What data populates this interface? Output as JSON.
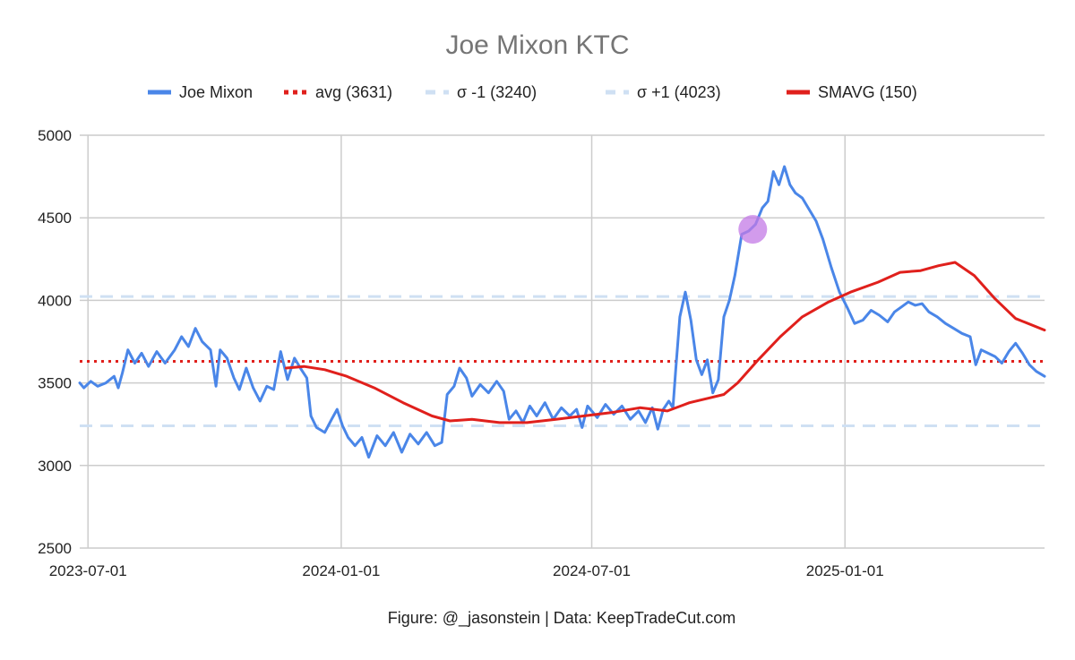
{
  "chart_data": {
    "type": "line",
    "title": "Joe Mixon KTC",
    "xlabel": "",
    "ylabel": "",
    "x_ticks": [
      "2023-07-01",
      "2024-01-01",
      "2024-07-01",
      "2025-01-01"
    ],
    "x_range": [
      "2023-06-25",
      "2025-05-26"
    ],
    "ylim": [
      2500,
      5000
    ],
    "y_ticks": [
      2500,
      3000,
      3500,
      4000,
      4500,
      5000
    ],
    "grid": true,
    "legend_position": "top",
    "footer": "Figure: @_jasonstein | Data: KeepTradeCut.com",
    "legend": [
      {
        "label": "Joe Mixon",
        "color": "#4a86e8",
        "style": "solid"
      },
      {
        "label": "avg (3631)",
        "color": "#e0201c",
        "style": "dotted"
      },
      {
        "label": "σ -1 (3240)",
        "color": "#cfe0f3",
        "style": "dashed"
      },
      {
        "label": "σ +1 (4023)",
        "color": "#cfe0f3",
        "style": "dashed"
      },
      {
        "label": "SMAVG (150)",
        "color": "#e0201c",
        "style": "solid"
      }
    ],
    "reference_lines": [
      {
        "name": "avg (3631)",
        "value": 3631
      },
      {
        "name": "σ -1 (3240)",
        "value": 3240
      },
      {
        "name": "σ +1 (4023)",
        "value": 4023
      }
    ],
    "highlight_point": {
      "x": "2024-10-26",
      "y": 4430,
      "color": "#c37ae6"
    },
    "series": [
      {
        "name": "Joe Mixon",
        "color": "#4a86e8",
        "points": [
          [
            "2023-06-25",
            3500
          ],
          [
            "2023-06-28",
            3470
          ],
          [
            "2023-07-03",
            3510
          ],
          [
            "2023-07-08",
            3480
          ],
          [
            "2023-07-14",
            3500
          ],
          [
            "2023-07-20",
            3540
          ],
          [
            "2023-07-23",
            3470
          ],
          [
            "2023-07-26",
            3560
          ],
          [
            "2023-07-30",
            3700
          ],
          [
            "2023-08-04",
            3620
          ],
          [
            "2023-08-09",
            3680
          ],
          [
            "2023-08-14",
            3600
          ],
          [
            "2023-08-20",
            3690
          ],
          [
            "2023-08-26",
            3620
          ],
          [
            "2023-09-02",
            3700
          ],
          [
            "2023-09-07",
            3780
          ],
          [
            "2023-09-12",
            3720
          ],
          [
            "2023-09-17",
            3830
          ],
          [
            "2023-09-22",
            3750
          ],
          [
            "2023-09-28",
            3700
          ],
          [
            "2023-10-02",
            3480
          ],
          [
            "2023-10-05",
            3700
          ],
          [
            "2023-10-10",
            3650
          ],
          [
            "2023-10-15",
            3530
          ],
          [
            "2023-10-19",
            3460
          ],
          [
            "2023-10-24",
            3590
          ],
          [
            "2023-10-29",
            3470
          ],
          [
            "2023-11-03",
            3390
          ],
          [
            "2023-11-08",
            3480
          ],
          [
            "2023-11-13",
            3460
          ],
          [
            "2023-11-18",
            3690
          ],
          [
            "2023-11-23",
            3520
          ],
          [
            "2023-11-28",
            3650
          ],
          [
            "2023-12-03",
            3580
          ],
          [
            "2023-12-07",
            3530
          ],
          [
            "2023-12-10",
            3300
          ],
          [
            "2023-12-14",
            3230
          ],
          [
            "2023-12-20",
            3200
          ],
          [
            "2023-12-25",
            3280
          ],
          [
            "2023-12-29",
            3340
          ],
          [
            "2024-01-02",
            3240
          ],
          [
            "2024-01-06",
            3170
          ],
          [
            "2024-01-11",
            3120
          ],
          [
            "2024-01-16",
            3170
          ],
          [
            "2024-01-21",
            3050
          ],
          [
            "2024-01-27",
            3180
          ],
          [
            "2024-02-02",
            3120
          ],
          [
            "2024-02-08",
            3200
          ],
          [
            "2024-02-14",
            3080
          ],
          [
            "2024-02-20",
            3190
          ],
          [
            "2024-02-26",
            3130
          ],
          [
            "2024-03-03",
            3200
          ],
          [
            "2024-03-09",
            3120
          ],
          [
            "2024-03-14",
            3140
          ],
          [
            "2024-03-18",
            3430
          ],
          [
            "2024-03-23",
            3480
          ],
          [
            "2024-03-27",
            3590
          ],
          [
            "2024-04-01",
            3530
          ],
          [
            "2024-04-05",
            3420
          ],
          [
            "2024-04-11",
            3490
          ],
          [
            "2024-04-17",
            3440
          ],
          [
            "2024-04-23",
            3510
          ],
          [
            "2024-04-28",
            3450
          ],
          [
            "2024-05-02",
            3280
          ],
          [
            "2024-05-07",
            3330
          ],
          [
            "2024-05-12",
            3260
          ],
          [
            "2024-05-17",
            3360
          ],
          [
            "2024-05-22",
            3300
          ],
          [
            "2024-05-28",
            3380
          ],
          [
            "2024-06-03",
            3280
          ],
          [
            "2024-06-09",
            3350
          ],
          [
            "2024-06-15",
            3300
          ],
          [
            "2024-06-20",
            3340
          ],
          [
            "2024-06-24",
            3230
          ],
          [
            "2024-06-28",
            3360
          ],
          [
            "2024-07-05",
            3290
          ],
          [
            "2024-07-11",
            3370
          ],
          [
            "2024-07-17",
            3310
          ],
          [
            "2024-07-23",
            3360
          ],
          [
            "2024-07-29",
            3280
          ],
          [
            "2024-08-04",
            3330
          ],
          [
            "2024-08-09",
            3260
          ],
          [
            "2024-08-14",
            3350
          ],
          [
            "2024-08-18",
            3220
          ],
          [
            "2024-08-22",
            3340
          ],
          [
            "2024-08-26",
            3390
          ],
          [
            "2024-08-29",
            3350
          ],
          [
            "2024-08-31",
            3580
          ],
          [
            "2024-09-03",
            3900
          ],
          [
            "2024-09-07",
            4050
          ],
          [
            "2024-09-11",
            3880
          ],
          [
            "2024-09-15",
            3640
          ],
          [
            "2024-09-19",
            3550
          ],
          [
            "2024-09-23",
            3640
          ],
          [
            "2024-09-27",
            3440
          ],
          [
            "2024-10-01",
            3520
          ],
          [
            "2024-10-05",
            3900
          ],
          [
            "2024-10-09",
            4000
          ],
          [
            "2024-10-13",
            4150
          ],
          [
            "2024-10-18",
            4400
          ],
          [
            "2024-10-23",
            4420
          ],
          [
            "2024-10-28",
            4460
          ],
          [
            "2024-11-02",
            4560
          ],
          [
            "2024-11-06",
            4600
          ],
          [
            "2024-11-10",
            4780
          ],
          [
            "2024-11-14",
            4700
          ],
          [
            "2024-11-18",
            4810
          ],
          [
            "2024-11-22",
            4700
          ],
          [
            "2024-11-26",
            4650
          ],
          [
            "2024-12-01",
            4620
          ],
          [
            "2024-12-06",
            4550
          ],
          [
            "2024-12-11",
            4480
          ],
          [
            "2024-12-16",
            4370
          ],
          [
            "2024-12-22",
            4200
          ],
          [
            "2024-12-28",
            4050
          ],
          [
            "2025-01-03",
            3950
          ],
          [
            "2025-01-08",
            3860
          ],
          [
            "2025-01-14",
            3880
          ],
          [
            "2025-01-20",
            3940
          ],
          [
            "2025-01-26",
            3910
          ],
          [
            "2025-02-01",
            3870
          ],
          [
            "2025-02-06",
            3930
          ],
          [
            "2025-02-11",
            3960
          ],
          [
            "2025-02-16",
            3990
          ],
          [
            "2025-02-21",
            3970
          ],
          [
            "2025-02-26",
            3980
          ],
          [
            "2025-03-03",
            3930
          ],
          [
            "2025-03-09",
            3900
          ],
          [
            "2025-03-15",
            3860
          ],
          [
            "2025-03-21",
            3830
          ],
          [
            "2025-03-27",
            3800
          ],
          [
            "2025-04-02",
            3780
          ],
          [
            "2025-04-06",
            3610
          ],
          [
            "2025-04-10",
            3700
          ],
          [
            "2025-04-15",
            3680
          ],
          [
            "2025-04-20",
            3660
          ],
          [
            "2025-04-25",
            3620
          ],
          [
            "2025-04-30",
            3690
          ],
          [
            "2025-05-05",
            3740
          ],
          [
            "2025-05-10",
            3680
          ],
          [
            "2025-05-15",
            3610
          ],
          [
            "2025-05-20",
            3570
          ],
          [
            "2025-05-26",
            3540
          ]
        ]
      },
      {
        "name": "SMAVG (150)",
        "color": "#e0201c",
        "points": [
          [
            "2023-11-22",
            3590
          ],
          [
            "2023-12-05",
            3600
          ],
          [
            "2023-12-20",
            3580
          ],
          [
            "2024-01-05",
            3540
          ],
          [
            "2024-01-25",
            3470
          ],
          [
            "2024-02-15",
            3380
          ],
          [
            "2024-03-07",
            3300
          ],
          [
            "2024-03-20",
            3270
          ],
          [
            "2024-04-05",
            3280
          ],
          [
            "2024-04-25",
            3260
          ],
          [
            "2024-05-15",
            3260
          ],
          [
            "2024-06-05",
            3280
          ],
          [
            "2024-06-25",
            3300
          ],
          [
            "2024-07-15",
            3320
          ],
          [
            "2024-08-05",
            3350
          ],
          [
            "2024-08-25",
            3330
          ],
          [
            "2024-09-10",
            3380
          ],
          [
            "2024-09-25",
            3410
          ],
          [
            "2024-10-05",
            3430
          ],
          [
            "2024-10-15",
            3500
          ],
          [
            "2024-10-30",
            3640
          ],
          [
            "2024-11-15",
            3780
          ],
          [
            "2024-12-01",
            3900
          ],
          [
            "2024-12-20",
            3990
          ],
          [
            "2025-01-05",
            4050
          ],
          [
            "2025-01-25",
            4110
          ],
          [
            "2025-02-10",
            4170
          ],
          [
            "2025-02-25",
            4180
          ],
          [
            "2025-03-10",
            4210
          ],
          [
            "2025-03-22",
            4230
          ],
          [
            "2025-04-05",
            4150
          ],
          [
            "2025-04-20",
            4010
          ],
          [
            "2025-05-05",
            3890
          ],
          [
            "2025-05-26",
            3820
          ]
        ]
      }
    ]
  }
}
